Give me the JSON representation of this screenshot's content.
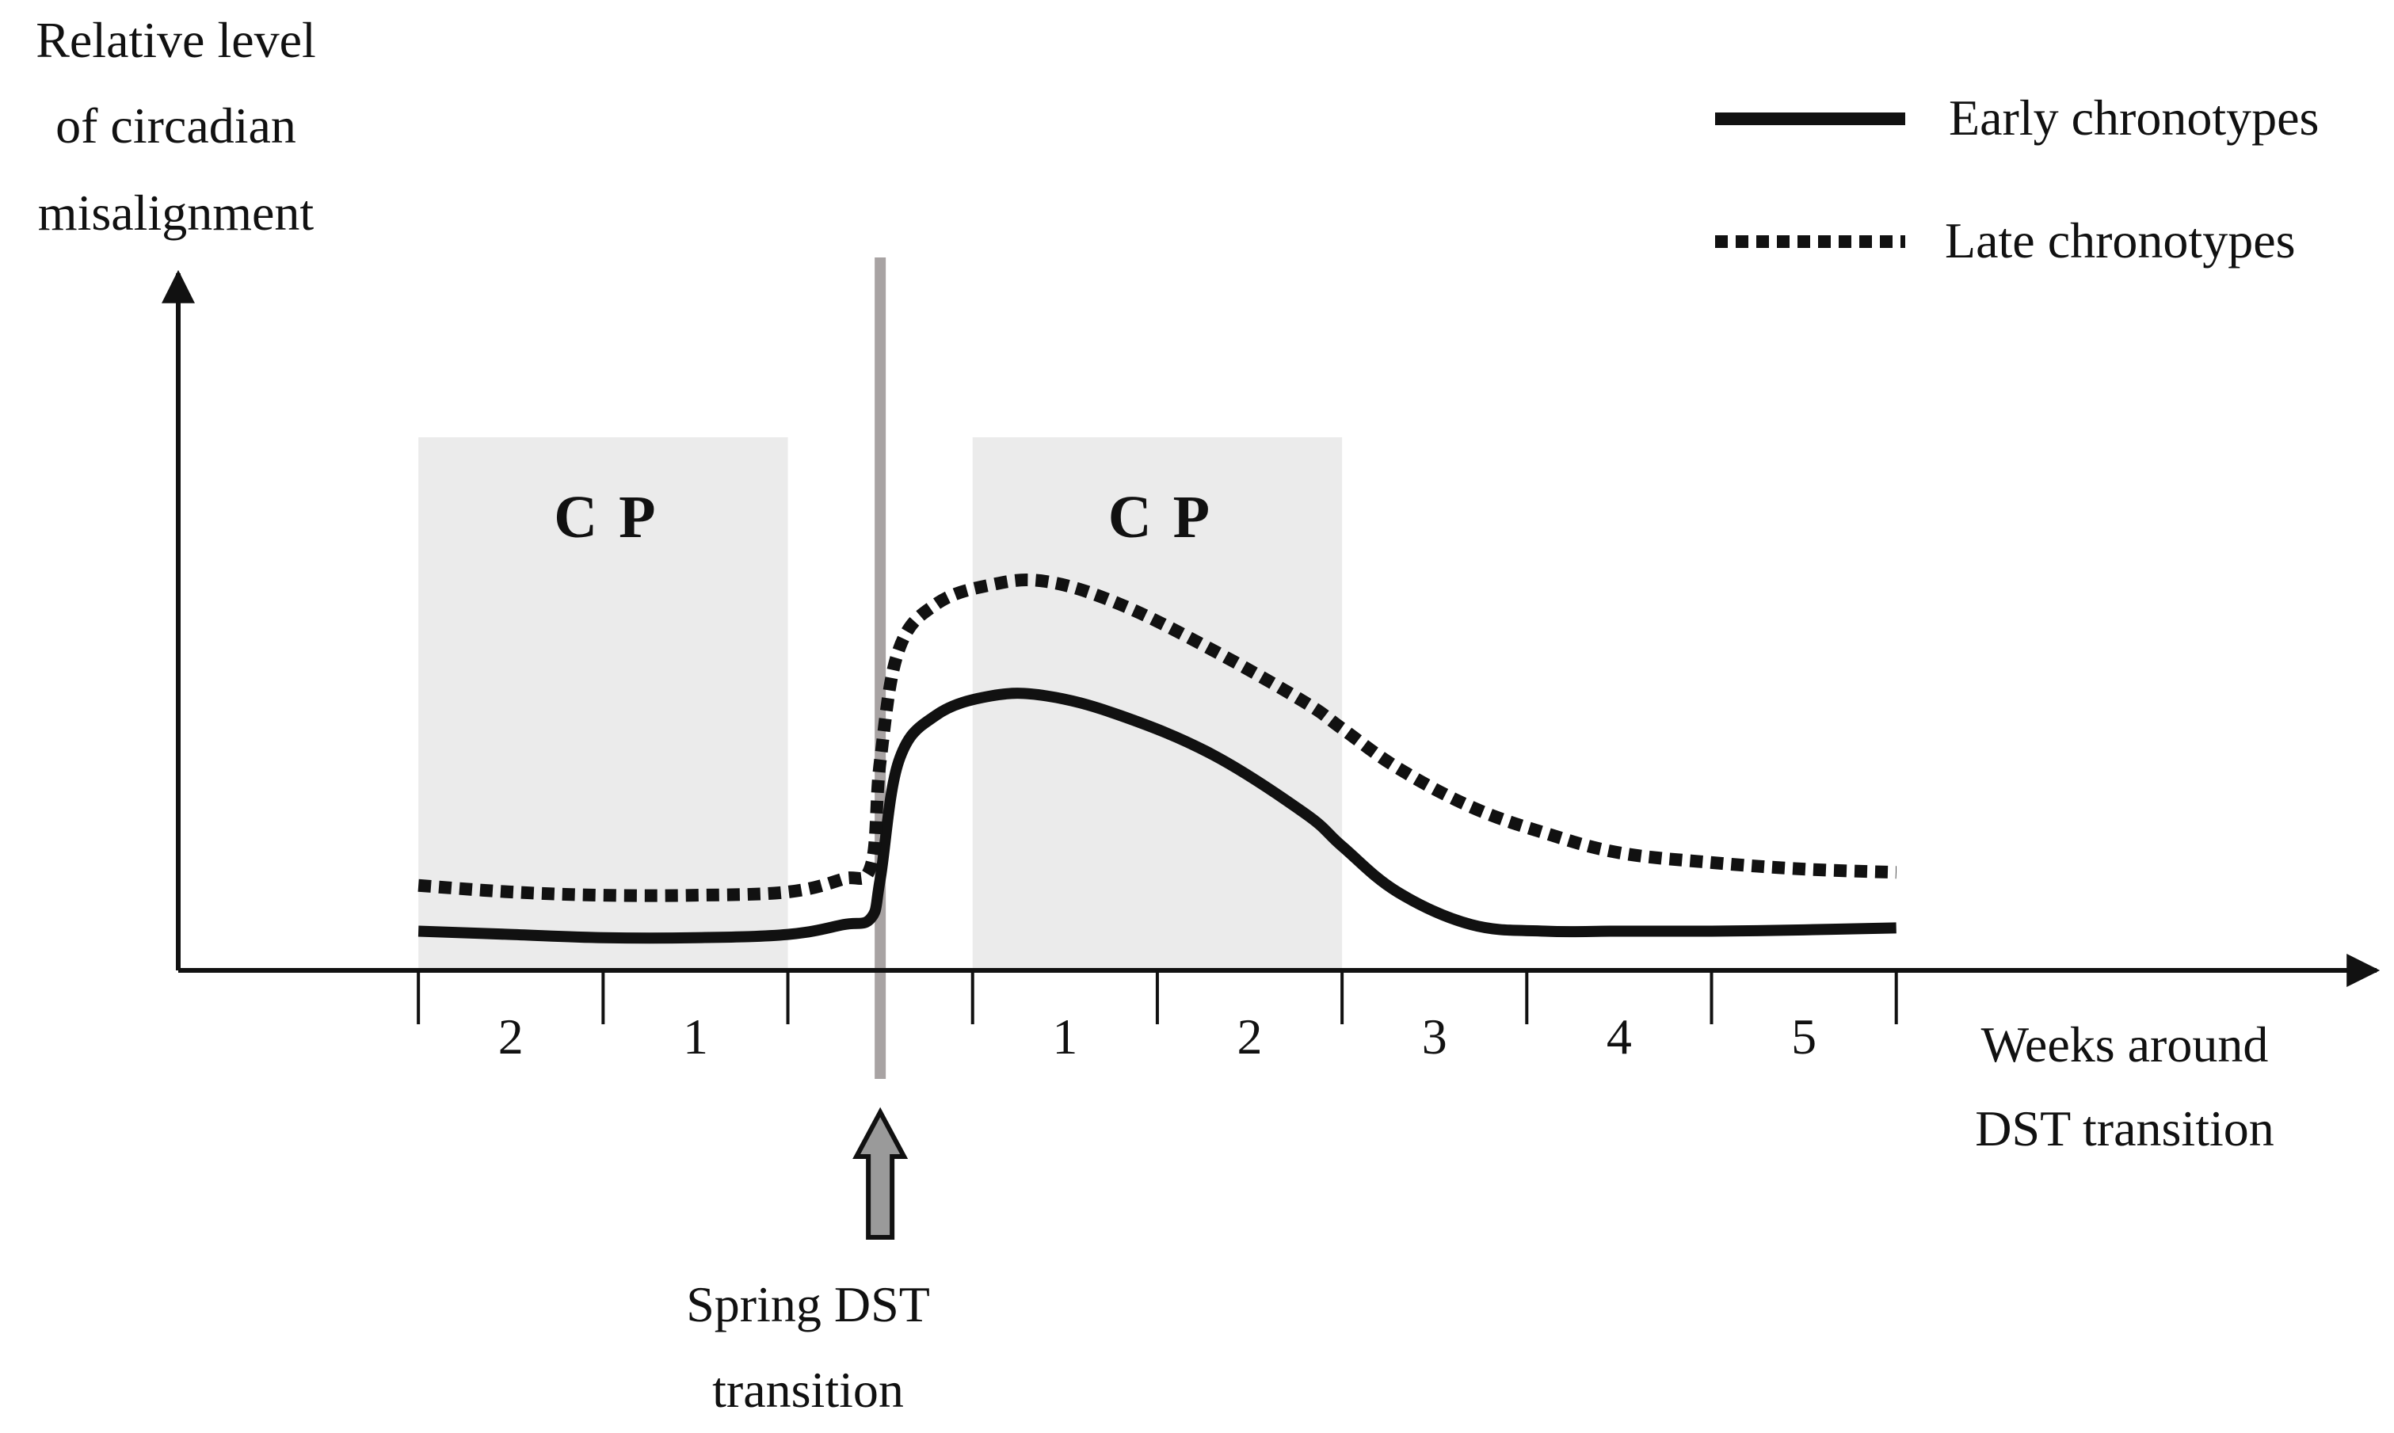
{
  "chart_data": {
    "type": "line",
    "ylabel_lines": [
      "Relative level",
      "of circadian",
      "misalignment"
    ],
    "xlabel_lines": [
      "Weeks around",
      "DST transition"
    ],
    "x_ticks": [
      {
        "x": -2,
        "label": "2"
      },
      {
        "x": -1,
        "label": "1"
      },
      {
        "x": 1,
        "label": "1"
      },
      {
        "x": 2,
        "label": "2"
      },
      {
        "x": 3,
        "label": "3"
      },
      {
        "x": 4,
        "label": "4"
      },
      {
        "x": 5,
        "label": "5"
      }
    ],
    "week_boundaries": [
      -2.5,
      -1.5,
      -0.5,
      0.5,
      1.5,
      2.5,
      3.5,
      4.5,
      5.5
    ],
    "xlim": [
      -3.8,
      8.1
    ],
    "ylim": [
      0,
      10
    ],
    "transition": {
      "x": 0,
      "label_lines": [
        "Spring DST",
        "transition"
      ]
    },
    "shaded_regions": [
      {
        "x0": -2.5,
        "x1": -0.5,
        "label": "C P"
      },
      {
        "x0": 0.5,
        "x1": 2.5,
        "label": "C P"
      }
    ],
    "series": [
      {
        "name": "Early chronotypes",
        "style": "solid",
        "x": [
          -2.5,
          -2.0,
          -1.5,
          -1.0,
          -0.5,
          -0.2,
          -0.05,
          0.0,
          0.1,
          0.3,
          0.6,
          0.9,
          1.3,
          1.8,
          2.3,
          2.5,
          2.8,
          3.2,
          3.6,
          4.0,
          4.5,
          5.0,
          5.5
        ],
        "y": [
          0.6,
          0.55,
          0.5,
          0.5,
          0.55,
          0.7,
          0.8,
          1.4,
          3.2,
          3.9,
          4.2,
          4.2,
          3.9,
          3.3,
          2.4,
          1.9,
          1.2,
          0.7,
          0.6,
          0.6,
          0.6,
          0.62,
          0.65
        ],
        "color": "#111111"
      },
      {
        "name": "Late chronotypes",
        "style": "dotted",
        "x": [
          -2.5,
          -2.0,
          -1.5,
          -1.0,
          -0.5,
          -0.2,
          -0.05,
          0.0,
          0.1,
          0.3,
          0.6,
          0.9,
          1.3,
          1.8,
          2.3,
          2.5,
          2.8,
          3.2,
          3.6,
          4.0,
          4.5,
          5.0,
          5.5
        ],
        "y": [
          1.3,
          1.2,
          1.15,
          1.15,
          1.2,
          1.4,
          1.6,
          3.2,
          4.9,
          5.6,
          5.9,
          5.95,
          5.6,
          4.9,
          4.1,
          3.7,
          3.1,
          2.5,
          2.1,
          1.8,
          1.65,
          1.55,
          1.5
        ],
        "color": "#111111"
      }
    ],
    "legend_position": "top-right",
    "grid": false
  },
  "colors": {
    "axis": "#111111",
    "shade": "#ebebeb",
    "transition_line": "#a8a3a3",
    "arrow_fill": "#9a9a9a"
  }
}
